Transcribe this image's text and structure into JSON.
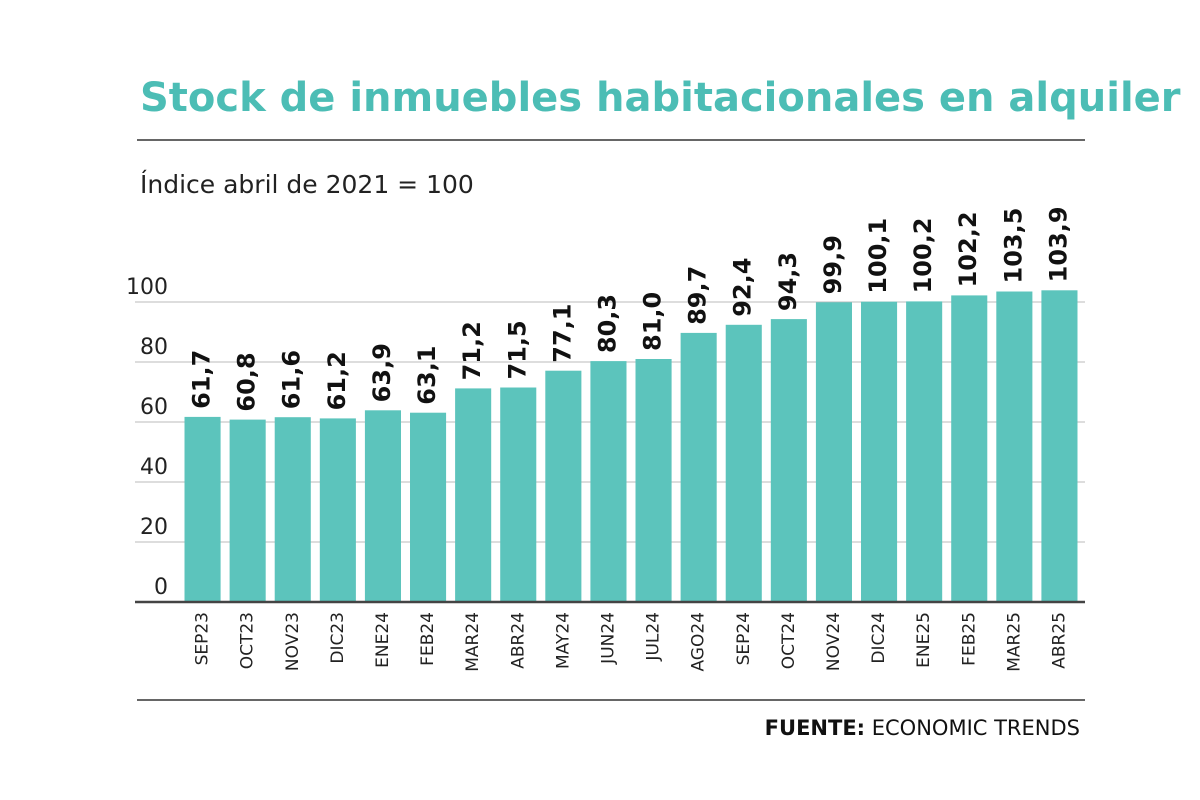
{
  "chart_data": {
    "type": "bar",
    "title": "Stock de inmuebles habitacionales en alquiler",
    "subtitle": "Índice abril de 2021 = 100",
    "categories": [
      "SEP23",
      "OCT23",
      "NOV23",
      "DIC23",
      "ENE24",
      "FEB24",
      "MAR24",
      "ABR24",
      "MAY24",
      "JUN24",
      "JUL24",
      "AGO24",
      "SEP24",
      "OCT24",
      "NOV24",
      "DIC24",
      "ENE25",
      "FEB25",
      "MAR25",
      "ABR25"
    ],
    "values": [
      61.7,
      60.8,
      61.6,
      61.2,
      63.9,
      63.1,
      71.2,
      71.5,
      77.1,
      80.3,
      81.0,
      89.7,
      92.4,
      94.3,
      99.9,
      100.1,
      100.2,
      102.2,
      103.5,
      103.9
    ],
    "value_labels": [
      "61,7",
      "60,8",
      "61,6",
      "61,2",
      "63,9",
      "63,1",
      "71,2",
      "71,5",
      "77,1",
      "80,3",
      "81,0",
      "89,7",
      "92,4",
      "94,3",
      "99,9",
      "100,1",
      "100,2",
      "102,2",
      "103,5",
      "103,9"
    ],
    "color": "#5cc4bc",
    "ylim": [
      0,
      110
    ],
    "yticks": [
      0,
      20,
      40,
      60,
      80,
      100
    ],
    "grid": true,
    "source_label": "FUENTE:",
    "source": "ECONOMIC TRENDS"
  }
}
